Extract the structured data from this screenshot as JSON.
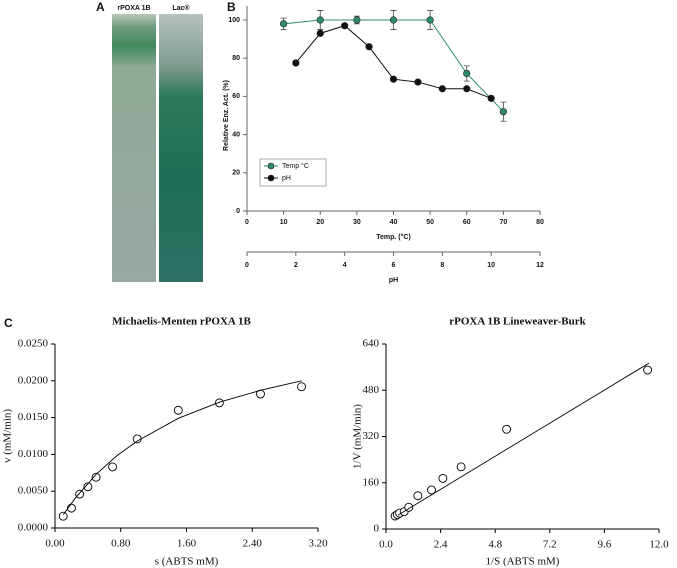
{
  "panel_labels": [
    "A",
    "B",
    "C"
  ],
  "gel": {
    "lanes": [
      "rPOXA 1B",
      "Lac®"
    ]
  },
  "chart_data": [
    {
      "type": "line",
      "xlabel": "Temp. (°C)",
      "x2label": "pH",
      "ylabel": "Relative Enz. Act. (%)",
      "xlim": [
        0,
        80
      ],
      "xticks": [
        0,
        10,
        20,
        30,
        40,
        50,
        60,
        70,
        80
      ],
      "x2lim": [
        0,
        12
      ],
      "x2ticks": [
        0,
        2,
        4,
        6,
        8,
        10,
        12
      ],
      "ylim": [
        0,
        100
      ],
      "yticks": [
        0,
        20,
        40,
        60,
        80,
        100
      ],
      "legend": "lower left",
      "series": [
        {
          "name": "Temp °C",
          "color": "#2e8b6e",
          "x": [
            10,
            20,
            30,
            40,
            50,
            60,
            70
          ],
          "values": [
            98,
            100,
            100,
            100,
            100,
            72,
            52
          ],
          "errors": [
            3,
            5,
            2,
            5,
            5,
            4,
            5
          ]
        },
        {
          "name": "pH",
          "color": "#111111",
          "axis": "x2",
          "x": [
            2,
            3,
            4,
            5,
            6,
            7,
            8,
            9,
            10
          ],
          "values": [
            77.5,
            93,
            97,
            86,
            69,
            67.5,
            64,
            64,
            59
          ]
        }
      ]
    },
    {
      "type": "scatter",
      "title": "Michaelis-Menten rPOXA 1B",
      "xlabel": "s (ABTS mM)",
      "ylabel": "v (mM/min)",
      "xlim": [
        0,
        3.2
      ],
      "xticks": [
        {
          "value": 0,
          "label": "0.00"
        },
        {
          "value": 0.8,
          "label": "0.80"
        },
        {
          "value": 1.6,
          "label": "1.60"
        },
        {
          "value": 2.4,
          "label": "2.40"
        },
        {
          "value": 3.2,
          "label": "3.20"
        }
      ],
      "ylim": [
        0,
        0.025
      ],
      "yticks": [
        {
          "value": 0,
          "label": "0.0000"
        },
        {
          "value": 0.005,
          "label": "0.0050"
        },
        {
          "value": 0.01,
          "label": "0.0100"
        },
        {
          "value": 0.015,
          "label": "0.0150"
        },
        {
          "value": 0.02,
          "label": "0.0200"
        },
        {
          "value": 0.025,
          "label": "0.0250"
        }
      ],
      "series": [
        {
          "color": "#000000",
          "marker": "circle",
          "x": [
            0.1,
            0.2,
            0.3,
            0.4,
            0.5,
            0.7,
            1.0,
            1.5,
            2.0,
            2.5,
            3.0
          ],
          "values": [
            0.0016,
            0.0027,
            0.0046,
            0.0056,
            0.0069,
            0.0083,
            0.0121,
            0.016,
            0.017,
            0.0182,
            0.0192
          ]
        },
        {
          "color": "#000000",
          "marker": "none",
          "x": [
            0.1,
            0.25,
            0.5,
            0.75,
            1.0,
            1.5,
            2.0,
            2.5,
            3.0
          ],
          "values": [
            0.0018,
            0.0041,
            0.0073,
            0.0098,
            0.0118,
            0.0149,
            0.0171,
            0.0187,
            0.02
          ]
        }
      ]
    },
    {
      "type": "scatter",
      "title": "rPOXA 1B  Lineweaver-Burk",
      "xlabel": "1/S (ABTS mM)",
      "ylabel": "1/V (mM/min)",
      "xlim": [
        0,
        12
      ],
      "xticks": [
        {
          "value": 0,
          "label": "0.0"
        },
        2.4,
        4.8,
        7.2,
        9.6,
        {
          "value": 12,
          "label": "12.0"
        }
      ],
      "ylim": [
        0,
        640
      ],
      "yticks": [
        0,
        160,
        320,
        480,
        640
      ],
      "series": [
        {
          "color": "#000000",
          "marker": "circle",
          "x": [
            0.4,
            0.5,
            0.6,
            0.8,
            1.0,
            1.4,
            2.0,
            2.5,
            3.3,
            5.3,
            11.5
          ],
          "values": [
            45,
            50,
            55,
            60,
            75,
            115,
            135,
            175,
            215,
            345,
            550
          ]
        },
        {
          "color": "#000000",
          "marker": "none",
          "x": [
            0.53,
            11.56
          ],
          "values": [
            48,
            574
          ]
        }
      ]
    }
  ]
}
